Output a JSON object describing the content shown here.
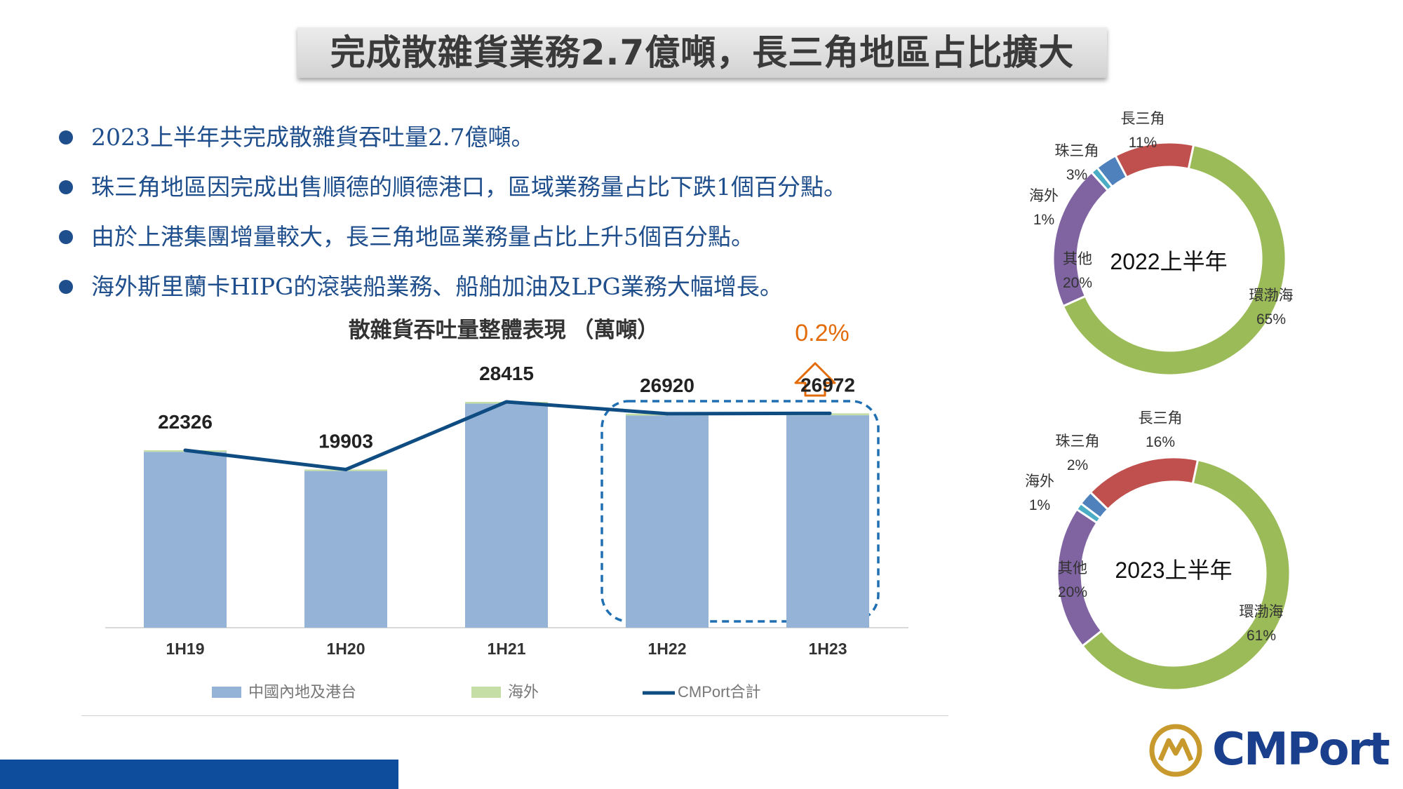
{
  "slide_title": "完成散雜貨業務2.7億噸，長三角地區占比擴大",
  "bullets": [
    "2023上半年共完成散雜貨吞吐量2.7億噸。",
    "珠三角地區因完成出售順德的順德港口，區域業務量占比下跌1個百分點。",
    "由於上港集團增量較大，長三角地區業務量占比上升5個百分點。",
    "海外斯里蘭卡HIPG的滾裝船業務、船舶加油及LPG業務大幅增長。"
  ],
  "bar_chart_title": "散雜貨吞吐量整體表現 （萬噸）",
  "growth_label": "0.2%",
  "donut_top_center": "2022上半年",
  "donut_bottom_center": "2023上半年",
  "logo_text": "CMPort",
  "colors": {
    "bar_mainland": "#95b3d7",
    "bar_overseas": "#c4dea5",
    "total_line": "#0f4c81",
    "highlight_box": "#1f6fb2",
    "growth_arrow": "#e36c09",
    "bottom_bar": "#0d4d9c",
    "pie_bohai": "#9bbb59",
    "pie_yangtze": "#c0504d",
    "pie_prd": "#4f81bd",
    "pie_overseas": "#4bacc6",
    "pie_other": "#8064a2"
  },
  "chart_data": [
    {
      "type": "bar",
      "title": "散雜貨吞吐量整體表現 （萬噸）",
      "categories": [
        "1H19",
        "1H20",
        "1H21",
        "1H22",
        "1H23"
      ],
      "series": [
        {
          "name": "中國內地及港台",
          "values": [
            22126,
            19713,
            28195,
            26695,
            26727
          ]
        },
        {
          "name": "海外",
          "values": [
            200,
            190,
            220,
            225,
            245
          ]
        },
        {
          "name": "CMPort合計",
          "type": "line",
          "values": [
            22326,
            19903,
            28415,
            26920,
            26972
          ]
        }
      ],
      "data_labels": [
        "22326",
        "19903",
        "28415",
        "26920",
        "26972"
      ],
      "ylim": [
        0,
        30000
      ],
      "highlighted_categories": [
        "1H22",
        "1H23"
      ],
      "annotation": "0.2%",
      "legend": "bottom"
    },
    {
      "type": "pie",
      "center_label": "2022上半年",
      "slices": [
        {
          "name": "環渤海",
          "value": 65,
          "label": "65%"
        },
        {
          "name": "其他",
          "value": 20,
          "label": "20%"
        },
        {
          "name": "海外",
          "value": 1,
          "label": "1%"
        },
        {
          "name": "珠三角",
          "value": 3,
          "label": "3%"
        },
        {
          "name": "長三角",
          "value": 11,
          "label": "11%"
        }
      ]
    },
    {
      "type": "pie",
      "center_label": "2023上半年",
      "slices": [
        {
          "name": "環渤海",
          "value": 61,
          "label": "61%"
        },
        {
          "name": "其他",
          "value": 20,
          "label": "20%"
        },
        {
          "name": "海外",
          "value": 1,
          "label": "1%"
        },
        {
          "name": "珠三角",
          "value": 2,
          "label": "2%"
        },
        {
          "name": "長三角",
          "value": 16,
          "label": "16%"
        }
      ]
    }
  ]
}
